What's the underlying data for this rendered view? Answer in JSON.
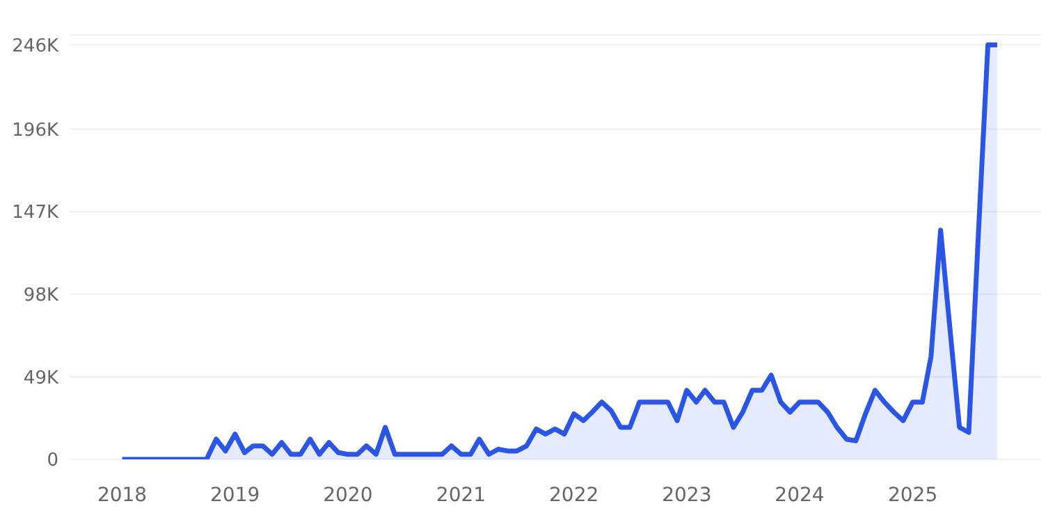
{
  "chart_data": {
    "type": "area",
    "x": [
      "2018-01",
      "2018-02",
      "2018-03",
      "2018-04",
      "2018-05",
      "2018-06",
      "2018-07",
      "2018-08",
      "2018-09",
      "2018-10",
      "2018-11",
      "2018-12",
      "2019-01",
      "2019-02",
      "2019-03",
      "2019-04",
      "2019-05",
      "2019-06",
      "2019-07",
      "2019-08",
      "2019-09",
      "2019-10",
      "2019-11",
      "2019-12",
      "2020-01",
      "2020-02",
      "2020-03",
      "2020-04",
      "2020-05",
      "2020-06",
      "2020-07",
      "2020-08",
      "2020-09",
      "2020-10",
      "2020-11",
      "2020-12",
      "2021-01",
      "2021-02",
      "2021-03",
      "2021-04",
      "2021-05",
      "2021-06",
      "2021-07",
      "2021-08",
      "2021-09",
      "2021-10",
      "2021-11",
      "2021-12",
      "2022-01",
      "2022-02",
      "2022-03",
      "2022-04",
      "2022-05",
      "2022-06",
      "2022-07",
      "2022-08",
      "2022-09",
      "2022-10",
      "2022-11",
      "2022-12",
      "2023-01",
      "2023-02",
      "2023-03",
      "2023-04",
      "2023-05",
      "2023-06",
      "2023-07",
      "2023-08",
      "2023-09",
      "2023-10",
      "2023-11",
      "2023-12",
      "2024-01",
      "2024-02",
      "2024-03",
      "2024-04",
      "2024-05",
      "2024-06",
      "2024-07",
      "2024-08",
      "2024-09",
      "2024-10",
      "2024-11",
      "2024-12",
      "2025-01",
      "2025-02",
      "2025-03",
      "2025-04",
      "2025-05",
      "2025-06",
      "2025-07",
      "2025-08",
      "2025-09",
      "2025-10"
    ],
    "series": [
      {
        "color": "#2a55e5",
        "values": [
          0,
          0,
          0,
          0,
          0,
          0,
          0,
          0,
          0,
          0,
          12000,
          5000,
          15000,
          4000,
          8000,
          8000,
          3000,
          10000,
          3000,
          3000,
          12000,
          3000,
          10000,
          4000,
          3000,
          3000,
          8000,
          3000,
          19000,
          3000,
          3000,
          3000,
          3000,
          3000,
          3000,
          8000,
          3000,
          3000,
          12000,
          3000,
          6000,
          5000,
          5000,
          8000,
          18000,
          15000,
          18000,
          15000,
          27000,
          23000,
          28000,
          34000,
          29000,
          19000,
          19000,
          34000,
          34000,
          34000,
          34000,
          23000,
          41000,
          34000,
          41000,
          34000,
          34000,
          19000,
          28000,
          41000,
          41000,
          50000,
          34000,
          28000,
          34000,
          34000,
          34000,
          28000,
          19000,
          12000,
          11000,
          27000,
          41000,
          34000,
          28000,
          23000,
          34000,
          34000,
          61000,
          136000,
          78000,
          19000,
          16000,
          133000,
          246000,
          246000
        ]
      }
    ],
    "xlim": [
      "2017-07-15",
      "2026-02-20"
    ],
    "xticks": [
      "2018",
      "2019",
      "2020",
      "2021",
      "2022",
      "2023",
      "2024",
      "2025"
    ],
    "ylim": [
      0,
      252000
    ],
    "yticks": [
      {
        "value": 0,
        "label": "0"
      },
      {
        "value": 49000,
        "label": "49K"
      },
      {
        "value": 98000,
        "label": "98K"
      },
      {
        "value": 147000,
        "label": "147K"
      },
      {
        "value": 196000,
        "label": "196K"
      },
      {
        "value": 246000,
        "label": "246K"
      }
    ],
    "grid": "y",
    "legend": false
  }
}
